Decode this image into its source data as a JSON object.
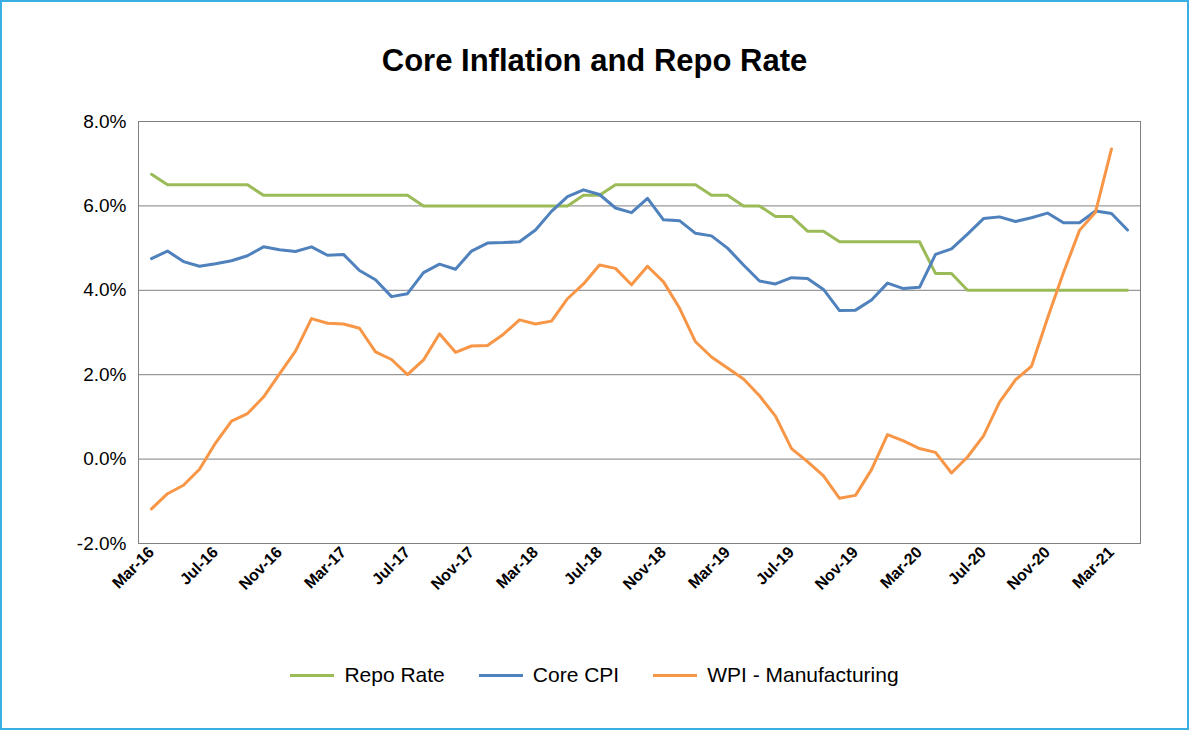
{
  "chart_data": {
    "type": "line",
    "title": "Core Inflation and Repo Rate",
    "x": [
      "Mar-16",
      null,
      null,
      null,
      "Jul-16",
      null,
      null,
      null,
      "Nov-16",
      null,
      null,
      null,
      "Mar-17",
      null,
      null,
      null,
      "Jul-17",
      null,
      null,
      null,
      "Nov-17",
      null,
      null,
      null,
      "Mar-18",
      null,
      null,
      null,
      "Jul-18",
      null,
      null,
      null,
      "Nov-18",
      null,
      null,
      null,
      "Mar-19",
      null,
      null,
      null,
      "Jul-19",
      null,
      null,
      null,
      "Nov-19",
      null,
      null,
      null,
      "Mar-20",
      null,
      null,
      null,
      "Jul-20",
      null,
      null,
      null,
      "Nov-20",
      null,
      null,
      null,
      "Mar-21",
      null
    ],
    "series": [
      {
        "name": "Repo Rate",
        "color": "#9bbb59",
        "values": [
          6.75,
          6.5,
          6.5,
          6.5,
          6.5,
          6.5,
          6.5,
          6.25,
          6.25,
          6.25,
          6.25,
          6.25,
          6.25,
          6.25,
          6.25,
          6.25,
          6.25,
          6.0,
          6.0,
          6.0,
          6.0,
          6.0,
          6.0,
          6.0,
          6.0,
          6.0,
          6.0,
          6.25,
          6.25,
          6.5,
          6.5,
          6.5,
          6.5,
          6.5,
          6.5,
          6.25,
          6.25,
          6.0,
          6.0,
          5.75,
          5.75,
          5.4,
          5.4,
          5.15,
          5.15,
          5.15,
          5.15,
          5.15,
          5.15,
          4.4,
          4.4,
          4.0,
          4.0,
          4.0,
          4.0,
          4.0,
          4.0,
          4.0,
          4.0,
          4.0,
          4.0,
          4.0
        ]
      },
      {
        "name": "Core CPI",
        "color": "#4f81bd",
        "values": [
          4.75,
          4.93,
          4.68,
          4.57,
          4.63,
          4.7,
          4.82,
          5.03,
          4.96,
          4.92,
          5.03,
          4.83,
          4.85,
          4.47,
          4.25,
          3.85,
          3.92,
          4.42,
          4.62,
          4.5,
          4.93,
          5.12,
          5.13,
          5.15,
          5.43,
          5.87,
          6.22,
          6.38,
          6.27,
          5.95,
          5.84,
          6.18,
          5.67,
          5.65,
          5.35,
          5.29,
          5.0,
          4.6,
          4.22,
          4.15,
          4.3,
          4.28,
          4.02,
          3.52,
          3.53,
          3.77,
          4.17,
          4.04,
          4.07,
          4.85,
          4.98,
          5.33,
          5.7,
          5.74,
          5.63,
          5.72,
          5.83,
          5.6,
          5.6,
          5.88,
          5.82,
          5.43
        ]
      },
      {
        "name": "WPI - Manufacturing",
        "color": "#f79646",
        "values": [
          -1.18,
          -0.82,
          -0.62,
          -0.24,
          0.38,
          0.9,
          1.08,
          1.47,
          2.02,
          2.56,
          3.33,
          3.22,
          3.2,
          3.1,
          2.54,
          2.36,
          2.0,
          2.35,
          2.97,
          2.53,
          2.68,
          2.69,
          2.96,
          3.3,
          3.2,
          3.27,
          3.8,
          4.15,
          4.6,
          4.52,
          4.13,
          4.57,
          4.2,
          3.58,
          2.78,
          2.42,
          2.16,
          1.9,
          1.5,
          1.02,
          0.25,
          -0.06,
          -0.4,
          -0.93,
          -0.86,
          -0.25,
          0.58,
          0.43,
          0.25,
          0.16,
          -0.33,
          0.05,
          0.55,
          1.35,
          1.88,
          2.2,
          3.34,
          4.42,
          5.42,
          5.85,
          7.35,
          null
        ]
      }
    ],
    "ylim": [
      -2,
      8
    ],
    "yticks": [
      {
        "value": -2,
        "label": "-2.0%"
      },
      {
        "value": 0,
        "label": "0.0%"
      },
      {
        "value": 2,
        "label": "2.0%"
      },
      {
        "value": 4,
        "label": "4.0%"
      },
      {
        "value": 6,
        "label": "6.0%"
      },
      {
        "value": 8,
        "label": "8.0%"
      }
    ],
    "grid": true,
    "legend": "bottom"
  }
}
